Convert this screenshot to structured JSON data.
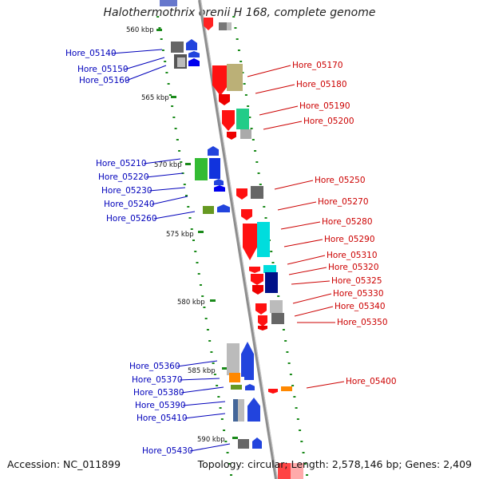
{
  "title": "Halothermothrix orenii H 168, complete genome",
  "footer": {
    "accession": "Accession: NC_011899",
    "topology": "Topology: circular; Length: 2,578,146 bp; Genes: 2,409"
  },
  "colors": {
    "forward_label": "#0000bb",
    "reverse_label": "#cc0000",
    "backbone": "#999999",
    "tick": "#1a8a1a"
  },
  "ticks": [
    {
      "label": "560 kbp"
    },
    {
      "label": "565 kbp"
    },
    {
      "label": "570 kbp"
    },
    {
      "label": "575 kbp"
    },
    {
      "label": "580 kbp"
    },
    {
      "label": "585 kbp"
    },
    {
      "label": "590 kbp"
    }
  ],
  "forward_labels": [
    {
      "text": "Hore_05140"
    },
    {
      "text": "Hore_05150"
    },
    {
      "text": "Hore_05160"
    },
    {
      "text": "Hore_05210"
    },
    {
      "text": "Hore_05220"
    },
    {
      "text": "Hore_05230"
    },
    {
      "text": "Hore_05240"
    },
    {
      "text": "Hore_05260"
    },
    {
      "text": "Hore_05360"
    },
    {
      "text": "Hore_05370"
    },
    {
      "text": "Hore_05380"
    },
    {
      "text": "Hore_05390"
    },
    {
      "text": "Hore_05410"
    },
    {
      "text": "Hore_05430"
    }
  ],
  "reverse_labels": [
    {
      "text": "Hore_05170"
    },
    {
      "text": "Hore_05180"
    },
    {
      "text": "Hore_05190"
    },
    {
      "text": "Hore_05200"
    },
    {
      "text": "Hore_05250"
    },
    {
      "text": "Hore_05270"
    },
    {
      "text": "Hore_05280"
    },
    {
      "text": "Hore_05290"
    },
    {
      "text": "Hore_05310"
    },
    {
      "text": "Hore_05320"
    },
    {
      "text": "Hore_05325"
    },
    {
      "text": "Hore_05330"
    },
    {
      "text": "Hore_05340"
    },
    {
      "text": "Hore_05350"
    },
    {
      "text": "Hore_05400"
    }
  ]
}
